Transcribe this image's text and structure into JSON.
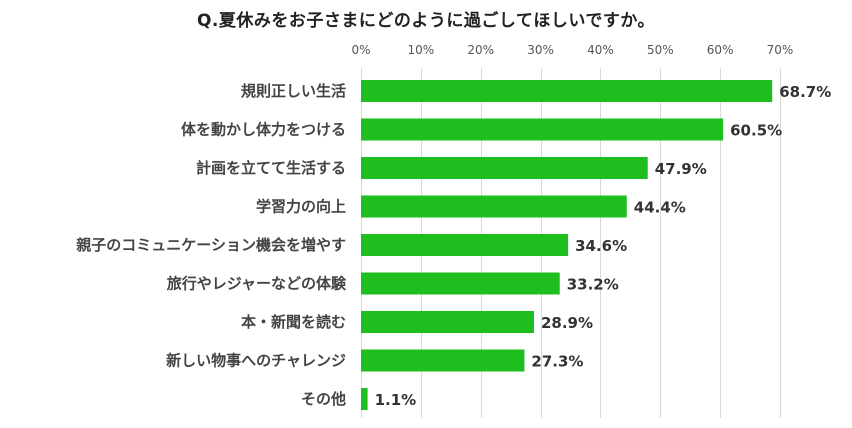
{
  "chart_data": {
    "type": "bar",
    "orientation": "horizontal",
    "title": "Q.夏休みをお子さまにどのように過ごしてほしいですか。",
    "categories": [
      "規則正しい生活",
      "体を動かし体力をつける",
      "計画を立てて生活する",
      "学習力の向上",
      "親子のコミュニケーション機会を増やす",
      "旅行やレジャーなどの体験",
      "本・新聞を読む",
      "新しい物事へのチャレンジ",
      "その他"
    ],
    "values": [
      68.7,
      60.5,
      47.9,
      44.4,
      34.6,
      33.2,
      28.9,
      27.3,
      1.1
    ],
    "value_labels": [
      "68.7%",
      "60.5%",
      "47.9%",
      "44.4%",
      "34.6%",
      "33.2%",
      "28.9%",
      "27.3%",
      "1.1%"
    ],
    "xlim": [
      0,
      70
    ],
    "xticks": [
      0,
      10,
      20,
      30,
      40,
      50,
      60,
      70
    ],
    "xtick_labels": [
      "0%",
      "10%",
      "20%",
      "30%",
      "40%",
      "50%",
      "60%",
      "70%"
    ],
    "axis_position": "top",
    "grid": true,
    "legend": "none",
    "bar_color": "#1fbe1f"
  }
}
